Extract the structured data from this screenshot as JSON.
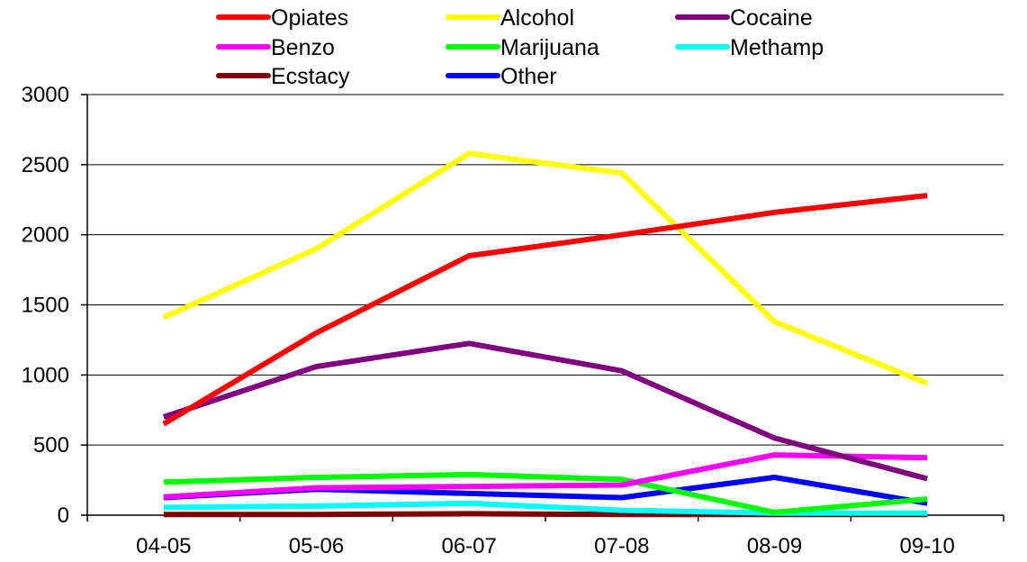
{
  "chart_data": {
    "type": "line",
    "title": "",
    "xlabel": "",
    "ylabel": "",
    "categories": [
      "04-05",
      "05-06",
      "06-07",
      "07-08",
      "08-09",
      "09-10"
    ],
    "ylim": [
      0,
      3000
    ],
    "yticks": [
      "0",
      "500",
      "1000",
      "1500",
      "2000",
      "2500",
      "3000"
    ],
    "grid": "horizontal",
    "legend_position": "top",
    "series": [
      {
        "name": "Opiates",
        "color": "#ff0000",
        "values": [
          650,
          1300,
          1850,
          2000,
          2160,
          2280
        ]
      },
      {
        "name": "Alcohol",
        "color": "#ffff00",
        "values": [
          1410,
          1900,
          2580,
          2440,
          1380,
          940
        ]
      },
      {
        "name": "Cocaine",
        "color": "#800080",
        "values": [
          700,
          1060,
          1225,
          1030,
          550,
          260
        ]
      },
      {
        "name": "Benzo",
        "color": "#ff00ff",
        "values": [
          130,
          195,
          205,
          215,
          430,
          410
        ]
      },
      {
        "name": "Marijuana",
        "color": "#00ff00",
        "values": [
          235,
          270,
          290,
          255,
          20,
          115
        ]
      },
      {
        "name": "Methamp",
        "color": "#00ffff",
        "values": [
          55,
          65,
          85,
          35,
          15,
          15
        ]
      },
      {
        "name": "Ecstacy",
        "color": "#800000",
        "values": [
          5,
          5,
          10,
          5,
          5,
          5
        ]
      },
      {
        "name": "Other",
        "color": "#0000ff",
        "values": [
          125,
          185,
          155,
          125,
          270,
          85
        ]
      }
    ]
  }
}
